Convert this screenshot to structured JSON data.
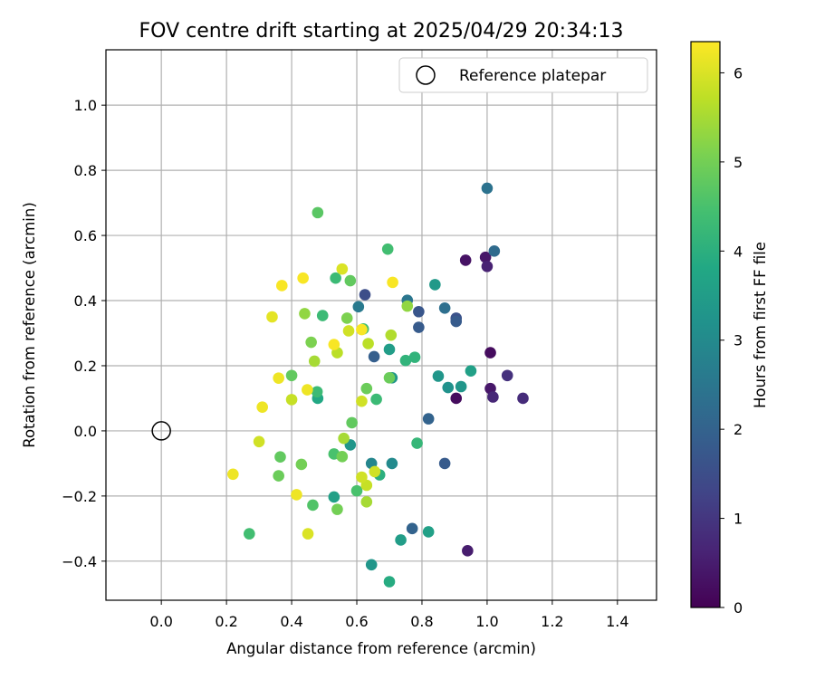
{
  "chart_data": {
    "type": "scatter",
    "title": "FOV centre drift starting at 2025/04/29 20:34:13",
    "xlabel": "Angular distance from reference (arcmin)",
    "ylabel": "Rotation from reference (arcmin)",
    "xlim": [
      -0.17,
      1.52
    ],
    "ylim": [
      -0.52,
      1.17
    ],
    "xticks": [
      0.0,
      0.2,
      0.4,
      0.6,
      0.8,
      1.0,
      1.2,
      1.4
    ],
    "xtick_labels": [
      "0.0",
      "0.2",
      "0.4",
      "0.6",
      "0.8",
      "1.0",
      "1.2",
      "1.4"
    ],
    "yticks": [
      -0.4,
      -0.2,
      0.0,
      0.2,
      0.4,
      0.6,
      0.8,
      1.0
    ],
    "ytick_labels": [
      "−0.4",
      "−0.2",
      "0.0",
      "0.2",
      "0.4",
      "0.6",
      "0.8",
      "1.0"
    ],
    "grid": true,
    "legend": {
      "placement": "top-right",
      "entries": [
        "Reference platepar"
      ]
    },
    "reference_point": {
      "x": 0.0,
      "y": 0.0,
      "label": "Reference platepar"
    },
    "colorbar": {
      "label": "Hours from first FF file",
      "colormap": "viridis",
      "range": [
        0,
        6.35
      ],
      "ticks": [
        0,
        1,
        2,
        3,
        4,
        5,
        6
      ],
      "tick_labels": [
        "0",
        "1",
        "2",
        "3",
        "4",
        "5",
        "6"
      ]
    },
    "points": [
      {
        "x": 0.934,
        "y": 0.524,
        "c": 0.3
      },
      {
        "x": 0.995,
        "y": 0.533,
        "c": 0.4
      },
      {
        "x": 1.0,
        "y": 0.505,
        "c": 0.6
      },
      {
        "x": 1.01,
        "y": 0.24,
        "c": 0.2
      },
      {
        "x": 1.062,
        "y": 0.17,
        "c": 0.9
      },
      {
        "x": 1.01,
        "y": 0.13,
        "c": 0.4
      },
      {
        "x": 1.018,
        "y": 0.104,
        "c": 0.7
      },
      {
        "x": 1.11,
        "y": 0.1,
        "c": 0.8
      },
      {
        "x": 0.905,
        "y": 0.1,
        "c": 0.2
      },
      {
        "x": 0.94,
        "y": -0.368,
        "c": 0.5
      },
      {
        "x": 0.905,
        "y": 0.346,
        "c": 1.6
      },
      {
        "x": 0.905,
        "y": 0.336,
        "c": 1.8
      },
      {
        "x": 0.79,
        "y": 0.366,
        "c": 1.7
      },
      {
        "x": 0.79,
        "y": 0.318,
        "c": 1.8
      },
      {
        "x": 0.625,
        "y": 0.418,
        "c": 1.5
      },
      {
        "x": 0.653,
        "y": 0.228,
        "c": 1.9
      },
      {
        "x": 0.82,
        "y": 0.037,
        "c": 2.0
      },
      {
        "x": 0.87,
        "y": -0.1,
        "c": 1.8
      },
      {
        "x": 0.77,
        "y": -0.3,
        "c": 2.0
      },
      {
        "x": 1.0,
        "y": 0.745,
        "c": 2.4
      },
      {
        "x": 1.022,
        "y": 0.552,
        "c": 2.2
      },
      {
        "x": 0.87,
        "y": 0.377,
        "c": 2.3
      },
      {
        "x": 0.755,
        "y": 0.401,
        "c": 2.5
      },
      {
        "x": 0.605,
        "y": 0.381,
        "c": 2.6
      },
      {
        "x": 0.84,
        "y": 0.449,
        "c": 3.4
      },
      {
        "x": 0.85,
        "y": 0.168,
        "c": 3.3
      },
      {
        "x": 0.88,
        "y": 0.133,
        "c": 3.2
      },
      {
        "x": 0.92,
        "y": 0.136,
        "c": 3.3
      },
      {
        "x": 0.95,
        "y": 0.184,
        "c": 3.6
      },
      {
        "x": 0.708,
        "y": 0.163,
        "c": 3.3
      },
      {
        "x": 0.7,
        "y": 0.25,
        "c": 3.5
      },
      {
        "x": 0.645,
        "y": -0.1,
        "c": 2.9
      },
      {
        "x": 0.708,
        "y": -0.1,
        "c": 3.0
      },
      {
        "x": 0.645,
        "y": -0.411,
        "c": 3.3
      },
      {
        "x": 0.735,
        "y": -0.335,
        "c": 3.5
      },
      {
        "x": 0.82,
        "y": -0.31,
        "c": 3.6
      },
      {
        "x": 0.58,
        "y": -0.043,
        "c": 3.3
      },
      {
        "x": 0.53,
        "y": -0.203,
        "c": 3.6
      },
      {
        "x": 0.7,
        "y": -0.463,
        "c": 3.9
      },
      {
        "x": 0.48,
        "y": 0.1,
        "c": 3.8
      },
      {
        "x": 0.67,
        "y": -0.135,
        "c": 4.0
      },
      {
        "x": 0.778,
        "y": 0.226,
        "c": 4.1
      },
      {
        "x": 0.75,
        "y": 0.216,
        "c": 4.1
      },
      {
        "x": 0.785,
        "y": -0.038,
        "c": 4.2
      },
      {
        "x": 0.695,
        "y": 0.558,
        "c": 4.4
      },
      {
        "x": 0.535,
        "y": 0.469,
        "c": 4.3
      },
      {
        "x": 0.495,
        "y": 0.354,
        "c": 4.3
      },
      {
        "x": 0.62,
        "y": 0.313,
        "c": 4.4
      },
      {
        "x": 0.66,
        "y": 0.097,
        "c": 4.3
      },
      {
        "x": 0.478,
        "y": 0.12,
        "c": 4.3
      },
      {
        "x": 0.6,
        "y": -0.184,
        "c": 4.5
      },
      {
        "x": 0.53,
        "y": -0.071,
        "c": 4.5
      },
      {
        "x": 0.465,
        "y": -0.228,
        "c": 4.6
      },
      {
        "x": 0.27,
        "y": -0.316,
        "c": 4.4
      },
      {
        "x": 0.48,
        "y": 0.67,
        "c": 4.7
      },
      {
        "x": 0.58,
        "y": 0.461,
        "c": 4.8
      },
      {
        "x": 0.4,
        "y": 0.17,
        "c": 4.8
      },
      {
        "x": 0.7,
        "y": 0.163,
        "c": 4.9
      },
      {
        "x": 0.585,
        "y": 0.025,
        "c": 4.8
      },
      {
        "x": 0.63,
        "y": 0.13,
        "c": 4.9
      },
      {
        "x": 0.365,
        "y": -0.08,
        "c": 4.8
      },
      {
        "x": 0.36,
        "y": -0.138,
        "c": 4.9
      },
      {
        "x": 0.43,
        "y": -0.103,
        "c": 5.0
      },
      {
        "x": 0.555,
        "y": -0.079,
        "c": 5.0
      },
      {
        "x": 0.54,
        "y": -0.241,
        "c": 5.0
      },
      {
        "x": 0.46,
        "y": 0.272,
        "c": 5.1
      },
      {
        "x": 0.57,
        "y": 0.346,
        "c": 5.1
      },
      {
        "x": 0.755,
        "y": 0.383,
        "c": 5.3
      },
      {
        "x": 0.44,
        "y": 0.36,
        "c": 5.3
      },
      {
        "x": 0.47,
        "y": 0.214,
        "c": 5.5
      },
      {
        "x": 0.56,
        "y": -0.023,
        "c": 5.5
      },
      {
        "x": 0.63,
        "y": -0.218,
        "c": 5.5
      },
      {
        "x": 0.705,
        "y": 0.294,
        "c": 5.6
      },
      {
        "x": 0.54,
        "y": 0.24,
        "c": 5.7
      },
      {
        "x": 0.635,
        "y": 0.268,
        "c": 5.7
      },
      {
        "x": 0.4,
        "y": 0.096,
        "c": 5.8
      },
      {
        "x": 0.575,
        "y": 0.307,
        "c": 5.9
      },
      {
        "x": 0.615,
        "y": 0.091,
        "c": 5.9
      },
      {
        "x": 0.655,
        "y": -0.125,
        "c": 5.9
      },
      {
        "x": 0.63,
        "y": -0.167,
        "c": 5.8
      },
      {
        "x": 0.615,
        "y": -0.142,
        "c": 5.9
      },
      {
        "x": 0.3,
        "y": -0.033,
        "c": 5.9
      },
      {
        "x": 0.45,
        "y": -0.316,
        "c": 6.0
      },
      {
        "x": 0.555,
        "y": 0.497,
        "c": 6.0
      },
      {
        "x": 0.34,
        "y": 0.35,
        "c": 6.1
      },
      {
        "x": 0.22,
        "y": -0.133,
        "c": 6.2
      },
      {
        "x": 0.31,
        "y": 0.073,
        "c": 6.2
      },
      {
        "x": 0.36,
        "y": 0.162,
        "c": 6.2
      },
      {
        "x": 0.448,
        "y": 0.126,
        "c": 6.2
      },
      {
        "x": 0.415,
        "y": -0.196,
        "c": 6.2
      },
      {
        "x": 0.53,
        "y": 0.265,
        "c": 6.3
      },
      {
        "x": 0.615,
        "y": 0.311,
        "c": 6.3
      },
      {
        "x": 0.435,
        "y": 0.469,
        "c": 6.3
      },
      {
        "x": 0.37,
        "y": 0.446,
        "c": 6.3
      },
      {
        "x": 0.71,
        "y": 0.456,
        "c": 6.3
      }
    ]
  }
}
